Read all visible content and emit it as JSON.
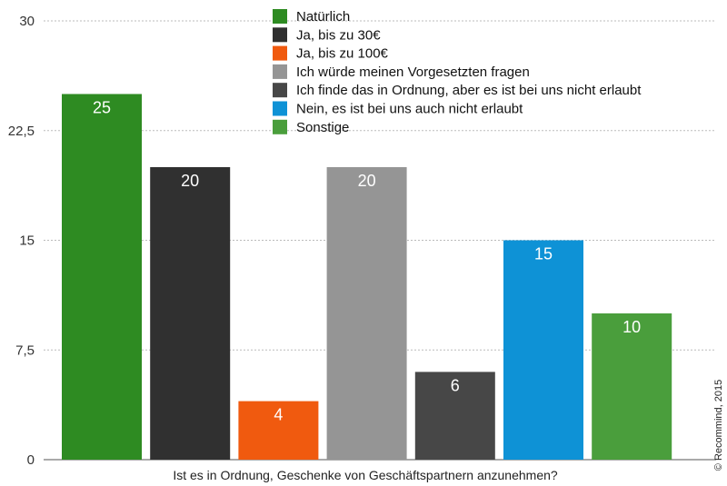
{
  "chart_data": {
    "type": "bar",
    "title": "",
    "xlabel": "Ist es in Ordnung, Geschenke von Geschäftspartnern anzunehmen?",
    "ylabel": "",
    "ylim": [
      0,
      30
    ],
    "yticks": [
      0,
      7.5,
      15,
      22.5,
      30
    ],
    "ytick_labels": [
      "0",
      "7,5",
      "15",
      "22,5",
      "30"
    ],
    "grid": "horizontal dashed",
    "legend_position": "top",
    "series": [
      {
        "name": "Natürlich",
        "values": [
          25
        ],
        "color": "#2e8b22"
      },
      {
        "name": "Ja, bis zu 30€",
        "values": [
          20
        ],
        "color": "#303030"
      },
      {
        "name": "Ja, bis zu 100€",
        "values": [
          4
        ],
        "color": "#f05a0f"
      },
      {
        "name": "Ich würde meinen Vorgesetzten fragen",
        "values": [
          20
        ],
        "color": "#959595"
      },
      {
        "name": "Ich finde das in Ordnung, aber es ist bei uns nicht erlaubt",
        "values": [
          6
        ],
        "color": "#474747"
      },
      {
        "name": "Nein, es ist bei uns auch nicht erlaubt",
        "values": [
          15
        ],
        "color": "#0e92d6"
      },
      {
        "name": "Sonstige",
        "values": [
          10
        ],
        "color": "#4a9e3c"
      }
    ]
  },
  "credit": "© Recommind, 2015"
}
